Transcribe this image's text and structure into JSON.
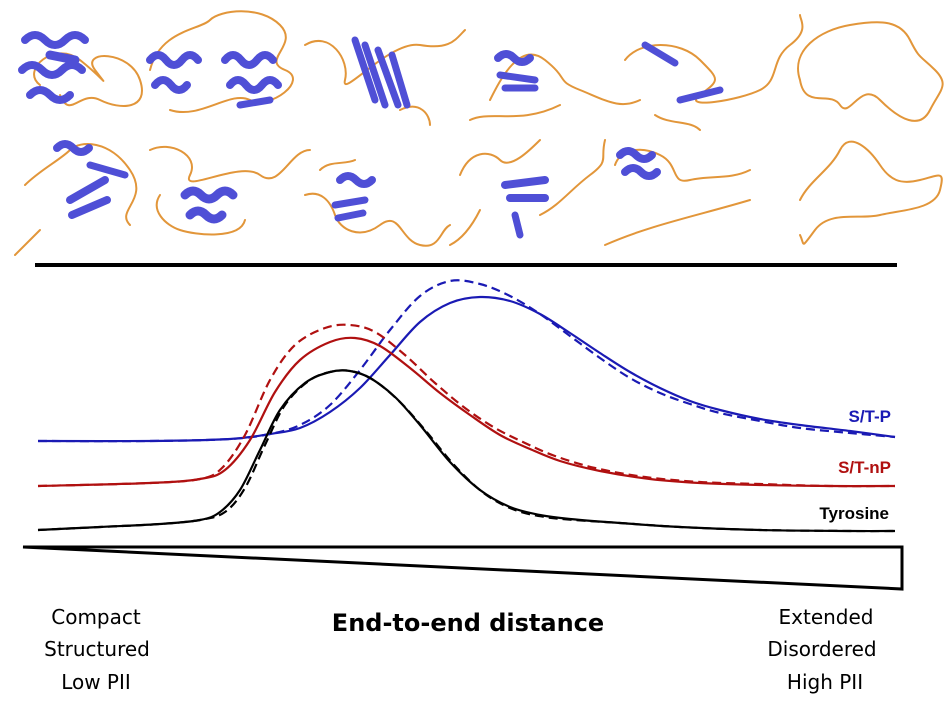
{
  "series": [
    {
      "name": "S/T-P",
      "color": "#1a1ab4",
      "solid": [
        [
          38,
          441
        ],
        [
          150,
          441
        ],
        [
          230,
          439
        ],
        [
          270,
          434
        ],
        [
          300,
          428
        ],
        [
          330,
          412
        ],
        [
          360,
          388
        ],
        [
          390,
          355
        ],
        [
          420,
          322
        ],
        [
          450,
          303
        ],
        [
          480,
          297
        ],
        [
          510,
          301
        ],
        [
          540,
          314
        ],
        [
          570,
          333
        ],
        [
          600,
          353
        ],
        [
          630,
          372
        ],
        [
          660,
          388
        ],
        [
          690,
          401
        ],
        [
          720,
          410
        ],
        [
          760,
          419
        ],
        [
          800,
          425
        ],
        [
          850,
          431
        ],
        [
          895,
          437
        ]
      ],
      "dashed": [
        [
          38,
          441
        ],
        [
          150,
          441
        ],
        [
          230,
          439
        ],
        [
          270,
          434
        ],
        [
          300,
          425
        ],
        [
          330,
          405
        ],
        [
          360,
          370
        ],
        [
          390,
          330
        ],
        [
          420,
          296
        ],
        [
          450,
          281
        ],
        [
          480,
          284
        ],
        [
          510,
          296
        ],
        [
          540,
          314
        ],
        [
          570,
          336
        ],
        [
          600,
          358
        ],
        [
          630,
          378
        ],
        [
          660,
          393
        ],
        [
          690,
          404
        ],
        [
          720,
          413
        ],
        [
          760,
          421
        ],
        [
          800,
          428
        ],
        [
          850,
          433
        ],
        [
          895,
          437
        ]
      ]
    },
    {
      "name": "S/T-nP",
      "color": "#b01010",
      "solid": [
        [
          38,
          486
        ],
        [
          150,
          483
        ],
        [
          200,
          479
        ],
        [
          225,
          470
        ],
        [
          250,
          440
        ],
        [
          275,
          392
        ],
        [
          300,
          360
        ],
        [
          330,
          342
        ],
        [
          355,
          338
        ],
        [
          380,
          346
        ],
        [
          410,
          368
        ],
        [
          440,
          393
        ],
        [
          470,
          415
        ],
        [
          500,
          435
        ],
        [
          530,
          449
        ],
        [
          560,
          461
        ],
        [
          600,
          471
        ],
        [
          650,
          479
        ],
        [
          700,
          483
        ],
        [
          760,
          485
        ],
        [
          830,
          486
        ],
        [
          895,
          486
        ]
      ],
      "dashed": [
        [
          38,
          486
        ],
        [
          150,
          483
        ],
        [
          200,
          479
        ],
        [
          222,
          468
        ],
        [
          245,
          435
        ],
        [
          270,
          380
        ],
        [
          295,
          345
        ],
        [
          325,
          328
        ],
        [
          350,
          325
        ],
        [
          375,
          332
        ],
        [
          405,
          355
        ],
        [
          435,
          383
        ],
        [
          465,
          408
        ],
        [
          495,
          428
        ],
        [
          525,
          443
        ],
        [
          555,
          456
        ],
        [
          595,
          468
        ],
        [
          645,
          477
        ],
        [
          700,
          482
        ],
        [
          760,
          484
        ],
        [
          830,
          486
        ],
        [
          895,
          486
        ]
      ]
    },
    {
      "name": "Tyrosine",
      "color": "#000000",
      "solid": [
        [
          38,
          530
        ],
        [
          100,
          527
        ],
        [
          160,
          524
        ],
        [
          200,
          520
        ],
        [
          220,
          512
        ],
        [
          240,
          490
        ],
        [
          260,
          450
        ],
        [
          280,
          410
        ],
        [
          305,
          383
        ],
        [
          330,
          372
        ],
        [
          350,
          371
        ],
        [
          370,
          378
        ],
        [
          395,
          397
        ],
        [
          420,
          425
        ],
        [
          450,
          462
        ],
        [
          480,
          490
        ],
        [
          510,
          507
        ],
        [
          540,
          515
        ],
        [
          570,
          519
        ],
        [
          620,
          523
        ],
        [
          680,
          527
        ],
        [
          760,
          530
        ],
        [
          850,
          531
        ],
        [
          895,
          531
        ]
      ],
      "dashed": [
        [
          38,
          530
        ],
        [
          100,
          527
        ],
        [
          160,
          524
        ],
        [
          200,
          520
        ],
        [
          225,
          512
        ],
        [
          245,
          488
        ],
        [
          265,
          445
        ],
        [
          285,
          405
        ],
        [
          310,
          380
        ],
        [
          335,
          371
        ],
        [
          355,
          372
        ],
        [
          375,
          381
        ],
        [
          400,
          402
        ],
        [
          425,
          430
        ],
        [
          455,
          466
        ],
        [
          485,
          494
        ],
        [
          515,
          510
        ],
        [
          545,
          517
        ],
        [
          575,
          520
        ],
        [
          620,
          523
        ],
        [
          680,
          527
        ],
        [
          760,
          530
        ],
        [
          850,
          531
        ],
        [
          895,
          531
        ]
      ]
    }
  ],
  "labels": [
    {
      "key": "stp",
      "text": "S/T-P"
    },
    {
      "key": "stnp",
      "text": "S/T-nP"
    },
    {
      "key": "tyr",
      "text": "Tyrosine"
    }
  ],
  "axis": {
    "title": "End-to-end distance",
    "left": [
      "Compact",
      "Structured",
      "Low PII"
    ],
    "right": [
      "Extended",
      "Disordered",
      "High PII"
    ]
  },
  "colors": {
    "helix": "#4f4fd6",
    "coil": "#e2963a",
    "divider": "#000000"
  }
}
